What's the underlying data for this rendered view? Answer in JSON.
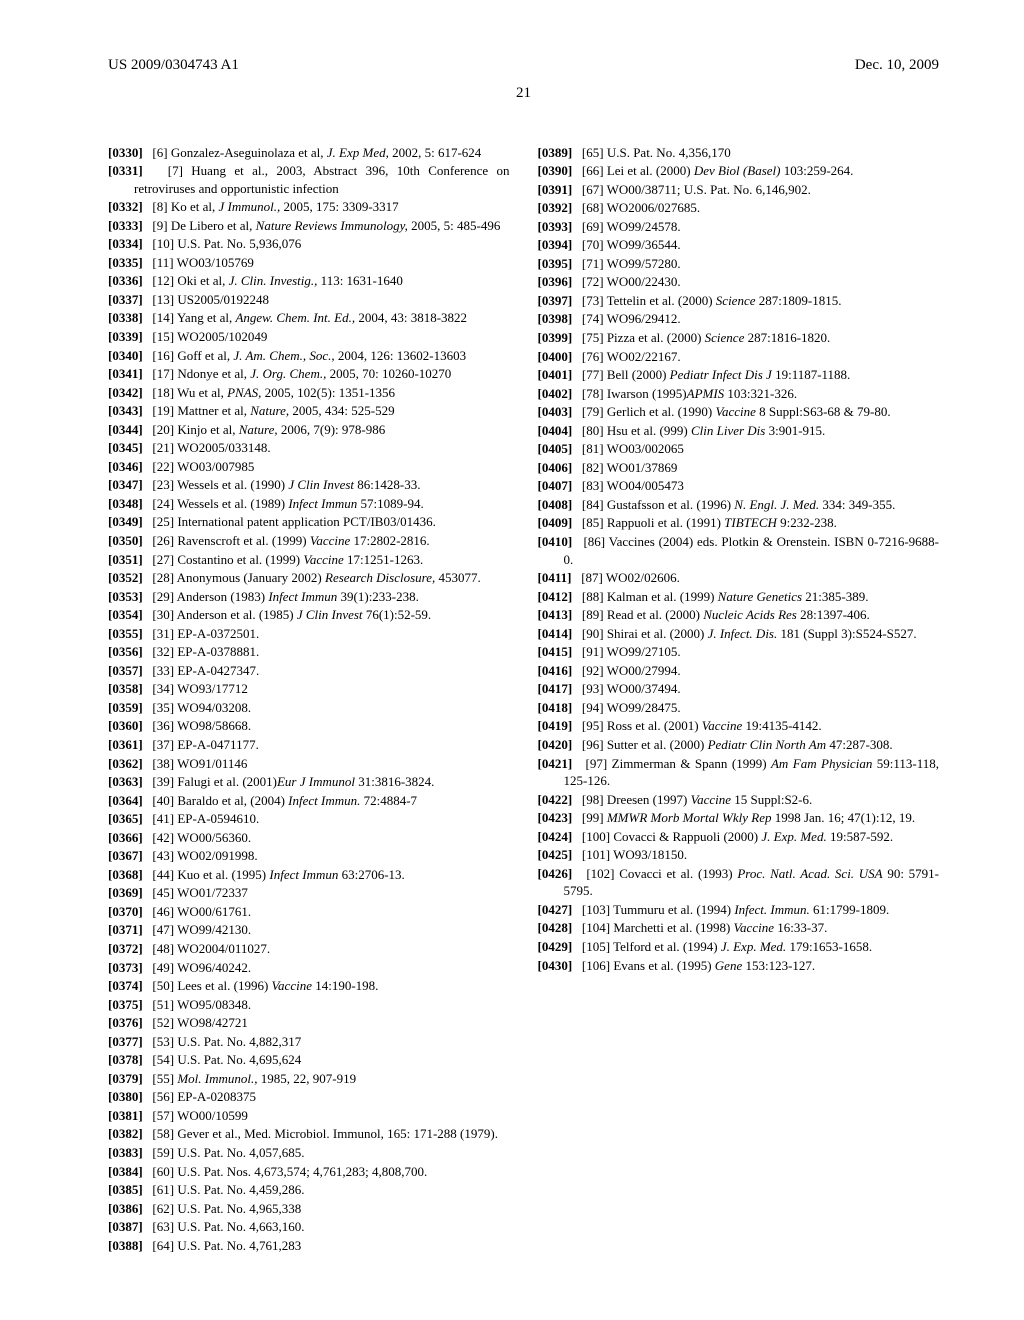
{
  "header": {
    "pub_number": "US 2009/0304743 A1",
    "date": "Dec. 10, 2009"
  },
  "page_number": "21",
  "references": [
    {
      "p": "[0330]",
      "n": "[6]",
      "html": "Gonzalez-Aseguinolaza et al, <span class='italic'>J. Exp Med,</span> 2002, 5: 617-624"
    },
    {
      "p": "[0331]",
      "n": "[7]",
      "html": "Huang et al., 2003, Abstract 396, 10th Conference on retroviruses and opportunistic infection"
    },
    {
      "p": "[0332]",
      "n": "[8]",
      "html": "Ko et al, <span class='italic'>J Immunol.,</span> 2005, 175: 3309-3317"
    },
    {
      "p": "[0333]",
      "n": "[9]",
      "html": "De Libero et al, <span class='italic'>Nature Reviews Immunology,</span> 2005, 5: 485-496"
    },
    {
      "p": "[0334]",
      "n": "[10]",
      "html": "U.S. Pat. No. 5,936,076"
    },
    {
      "p": "[0335]",
      "n": "[11]",
      "html": "WO03/105769"
    },
    {
      "p": "[0336]",
      "n": "[12]",
      "html": "Oki et al, <span class='italic'>J. Clin. Investig.,</span> 113: 1631-1640"
    },
    {
      "p": "[0337]",
      "n": "[13]",
      "html": "US2005/0192248"
    },
    {
      "p": "[0338]",
      "n": "[14]",
      "html": "Yang et al, <span class='italic'>Angew. Chem. Int. Ed.,</span> 2004, 43: 3818-3822"
    },
    {
      "p": "[0339]",
      "n": "[15]",
      "html": "WO2005/102049"
    },
    {
      "p": "[0340]",
      "n": "[16]",
      "html": "Goff et al, <span class='italic'>J. Am. Chem., Soc.,</span> 2004, 126: 13602-13603"
    },
    {
      "p": "[0341]",
      "n": "[17]",
      "html": "Ndonye et al, <span class='italic'>J. Org. Chem.,</span> 2005, 70: 10260-10270"
    },
    {
      "p": "[0342]",
      "n": "[18]",
      "html": "Wu et al, <span class='italic'>PNAS,</span> 2005, 102(5): 1351-1356"
    },
    {
      "p": "[0343]",
      "n": "[19]",
      "html": "Mattner et al, <span class='italic'>Nature,</span> 2005, 434: 525-529"
    },
    {
      "p": "[0344]",
      "n": "[20]",
      "html": "Kinjo et al, <span class='italic'>Nature,</span> 2006, 7(9): 978-986"
    },
    {
      "p": "[0345]",
      "n": "[21]",
      "html": "WO2005/033148."
    },
    {
      "p": "[0346]",
      "n": "[22]",
      "html": "WO03/007985"
    },
    {
      "p": "[0347]",
      "n": "[23]",
      "html": "Wessels et al. (1990) <span class='italic'>J Clin Invest</span> 86:1428-33."
    },
    {
      "p": "[0348]",
      "n": "[24]",
      "html": "Wessels et al. (1989) <span class='italic'>Infect Immun</span> 57:1089-94."
    },
    {
      "p": "[0349]",
      "n": "[25]",
      "html": "International patent application PCT/IB03/01436."
    },
    {
      "p": "[0350]",
      "n": "[26]",
      "html": "Ravenscroft et al. (1999) <span class='italic'>Vaccine</span> 17:2802-2816."
    },
    {
      "p": "[0351]",
      "n": "[27]",
      "html": "Costantino et al. (1999) <span class='italic'>Vaccine</span> 17:1251-1263."
    },
    {
      "p": "[0352]",
      "n": "[28]",
      "html": "Anonymous (January 2002) <span class='italic'>Research Disclosure,</span> 453077."
    },
    {
      "p": "[0353]",
      "n": "[29]",
      "html": "Anderson (1983) <span class='italic'>Infect Immun</span> 39(1):233-238."
    },
    {
      "p": "[0354]",
      "n": "[30]",
      "html": "Anderson et al. (1985) <span class='italic'>J Clin Invest</span> 76(1):52-59."
    },
    {
      "p": "[0355]",
      "n": "[31]",
      "html": "EP-A-0372501."
    },
    {
      "p": "[0356]",
      "n": "[32]",
      "html": "EP-A-0378881."
    },
    {
      "p": "[0357]",
      "n": "[33]",
      "html": "EP-A-0427347."
    },
    {
      "p": "[0358]",
      "n": "[34]",
      "html": "WO93/17712"
    },
    {
      "p": "[0359]",
      "n": "[35]",
      "html": "WO94/03208."
    },
    {
      "p": "[0360]",
      "n": "[36]",
      "html": "WO98/58668."
    },
    {
      "p": "[0361]",
      "n": "[37]",
      "html": "EP-A-0471177."
    },
    {
      "p": "[0362]",
      "n": "[38]",
      "html": "WO91/01146"
    },
    {
      "p": "[0363]",
      "n": "[39]",
      "html": "Falugi et al. (2001)<span class='italic'>Eur J Immunol</span> 31:3816-3824."
    },
    {
      "p": "[0364]",
      "n": "[40]",
      "html": "Baraldo et al, (2004) <span class='italic'>Infect Immun.</span> 72:4884-7"
    },
    {
      "p": "[0365]",
      "n": "[41]",
      "html": "EP-A-0594610."
    },
    {
      "p": "[0366]",
      "n": "[42]",
      "html": "WO00/56360."
    },
    {
      "p": "[0367]",
      "n": "[43]",
      "html": "WO02/091998."
    },
    {
      "p": "[0368]",
      "n": "[44]",
      "html": "Kuo et al. (1995) <span class='italic'>Infect Immun</span> 63:2706-13."
    },
    {
      "p": "[0369]",
      "n": "[45]",
      "html": "WO01/72337"
    },
    {
      "p": "[0370]",
      "n": "[46]",
      "html": "WO00/61761."
    },
    {
      "p": "[0371]",
      "n": "[47]",
      "html": "WO99/42130."
    },
    {
      "p": "[0372]",
      "n": "[48]",
      "html": "WO2004/011027."
    },
    {
      "p": "[0373]",
      "n": "[49]",
      "html": "WO96/40242."
    },
    {
      "p": "[0374]",
      "n": "[50]",
      "html": "Lees et al. (1996) <span class='italic'>Vaccine</span> 14:190-198."
    },
    {
      "p": "[0375]",
      "n": "[51]",
      "html": "WO95/08348."
    },
    {
      "p": "[0376]",
      "n": "[52]",
      "html": "WO98/42721"
    },
    {
      "p": "[0377]",
      "n": "[53]",
      "html": "U.S. Pat. No. 4,882,317"
    },
    {
      "p": "[0378]",
      "n": "[54]",
      "html": "U.S. Pat. No. 4,695,624"
    },
    {
      "p": "[0379]",
      "n": "[55]",
      "html": "<span class='italic'>Mol. Immunol.,</span> 1985, 22, 907-919"
    },
    {
      "p": "[0380]",
      "n": "[56]",
      "html": "EP-A-0208375"
    },
    {
      "p": "[0381]",
      "n": "[57]",
      "html": "WO00/10599"
    },
    {
      "p": "[0382]",
      "n": "[58]",
      "html": "Gever et al., Med. Microbiol. Immunol, 165: 171-288 (1979)."
    },
    {
      "p": "[0383]",
      "n": "[59]",
      "html": "U.S. Pat. No. 4,057,685."
    },
    {
      "p": "[0384]",
      "n": "[60]",
      "html": "U.S. Pat. Nos. 4,673,574; 4,761,283; 4,808,700."
    },
    {
      "p": "[0385]",
      "n": "[61]",
      "html": "U.S. Pat. No. 4,459,286."
    },
    {
      "p": "[0386]",
      "n": "[62]",
      "html": "U.S. Pat. No. 4,965,338"
    },
    {
      "p": "[0387]",
      "n": "[63]",
      "html": "U.S. Pat. No. 4,663,160."
    },
    {
      "p": "[0388]",
      "n": "[64]",
      "html": "U.S. Pat. No. 4,761,283"
    },
    {
      "p": "[0389]",
      "n": "[65]",
      "html": "U.S. Pat. No. 4,356,170"
    },
    {
      "p": "[0390]",
      "n": "[66]",
      "html": "Lei et al. (2000) <span class='italic'>Dev Biol (Basel)</span> 103:259-264."
    },
    {
      "p": "[0391]",
      "n": "[67]",
      "html": "WO00/38711; U.S. Pat. No. 6,146,902."
    },
    {
      "p": "[0392]",
      "n": "[68]",
      "html": "WO2006/027685."
    },
    {
      "p": "[0393]",
      "n": "[69]",
      "html": "WO99/24578."
    },
    {
      "p": "[0394]",
      "n": "[70]",
      "html": "WO99/36544."
    },
    {
      "p": "[0395]",
      "n": "[71]",
      "html": "WO99/57280."
    },
    {
      "p": "[0396]",
      "n": "[72]",
      "html": "WO00/22430."
    },
    {
      "p": "[0397]",
      "n": "[73]",
      "html": "Tettelin et al. (2000) <span class='italic'>Science</span> 287:1809-1815."
    },
    {
      "p": "[0398]",
      "n": "[74]",
      "html": "WO96/29412."
    },
    {
      "p": "[0399]",
      "n": "[75]",
      "html": "Pizza et al. (2000) <span class='italic'>Science</span> 287:1816-1820."
    },
    {
      "p": "[0400]",
      "n": "[76]",
      "html": "WO02/22167."
    },
    {
      "p": "[0401]",
      "n": "[77]",
      "html": "Bell (2000) <span class='italic'>Pediatr Infect Dis J</span> 19:1187-1188."
    },
    {
      "p": "[0402]",
      "n": "[78]",
      "html": "Iwarson (1995)<span class='italic'>APMIS</span> 103:321-326."
    },
    {
      "p": "[0403]",
      "n": "[79]",
      "html": "Gerlich et al. (1990) <span class='italic'>Vaccine</span> 8 Suppl:S63-68 &amp; 79-80."
    },
    {
      "p": "[0404]",
      "n": "[80]",
      "html": "Hsu et al. (999) <span class='italic'>Clin Liver Dis</span> 3:901-915."
    },
    {
      "p": "[0405]",
      "n": "[81]",
      "html": "WO03/002065"
    },
    {
      "p": "[0406]",
      "n": "[82]",
      "html": "WO01/37869"
    },
    {
      "p": "[0407]",
      "n": "[83]",
      "html": "WO04/005473"
    },
    {
      "p": "[0408]",
      "n": "[84]",
      "html": "Gustafsson et al. (1996) <span class='italic'>N. Engl. J. Med.</span> 334: 349-355."
    },
    {
      "p": "[0409]",
      "n": "[85]",
      "html": "Rappuoli et al. (1991) <span class='italic'>TIBTECH</span> 9:232-238."
    },
    {
      "p": "[0410]",
      "n": "[86]",
      "html": "Vaccines (2004) eds. Plotkin &amp; Orenstein. ISBN 0-7216-9688-0."
    },
    {
      "p": "[0411]",
      "n": "[87]",
      "html": "WO02/02606."
    },
    {
      "p": "[0412]",
      "n": "[88]",
      "html": "Kalman et al. (1999) <span class='italic'>Nature Genetics</span> 21:385-389."
    },
    {
      "p": "[0413]",
      "n": "[89]",
      "html": "Read et al. (2000) <span class='italic'>Nucleic Acids Res</span> 28:1397-406."
    },
    {
      "p": "[0414]",
      "n": "[90]",
      "html": "Shirai et al. (2000) <span class='italic'>J. Infect. Dis.</span> 181 (Suppl 3):S524-S527."
    },
    {
      "p": "[0415]",
      "n": "[91]",
      "html": "WO99/27105."
    },
    {
      "p": "[0416]",
      "n": "[92]",
      "html": "WO00/27994."
    },
    {
      "p": "[0417]",
      "n": "[93]",
      "html": "WO00/37494."
    },
    {
      "p": "[0418]",
      "n": "[94]",
      "html": "WO99/28475."
    },
    {
      "p": "[0419]",
      "n": "[95]",
      "html": "Ross et al. (2001) <span class='italic'>Vaccine</span> 19:4135-4142."
    },
    {
      "p": "[0420]",
      "n": "[96]",
      "html": "Sutter et al. (2000) <span class='italic'>Pediatr Clin North Am</span> 47:287-308."
    },
    {
      "p": "[0421]",
      "n": "[97]",
      "html": "Zimmerman &amp; Spann (1999) <span class='italic'>Am Fam Physician</span> 59:113-118, 125-126."
    },
    {
      "p": "[0422]",
      "n": "[98]",
      "html": "Dreesen (1997) <span class='italic'>Vaccine</span> 15 Suppl:S2-6."
    },
    {
      "p": "[0423]",
      "n": "[99]",
      "html": "<span class='italic'>MMWR Morb Mortal Wkly Rep</span> 1998 Jan. 16; 47(1):12, 19."
    },
    {
      "p": "[0424]",
      "n": "[100]",
      "html": "Covacci &amp; Rappuoli (2000) <span class='italic'>J. Exp. Med.</span> 19:587-592."
    },
    {
      "p": "[0425]",
      "n": "[101]",
      "html": "WO93/18150."
    },
    {
      "p": "[0426]",
      "n": "[102]",
      "html": "Covacci et al. (1993) <span class='italic'>Proc. Natl. Acad. Sci. USA</span> 90: 5791-5795."
    },
    {
      "p": "[0427]",
      "n": "[103]",
      "html": "Tummuru et al. (1994) <span class='italic'>Infect. Immun.</span> 61:1799-1809."
    },
    {
      "p": "[0428]",
      "n": "[104]",
      "html": "Marchetti et al. (1998) <span class='italic'>Vaccine</span> 16:33-37."
    },
    {
      "p": "[0429]",
      "n": "[105]",
      "html": "Telford et al. (1994) <span class='italic'>J. Exp. Med.</span> 179:1653-1658."
    },
    {
      "p": "[0430]",
      "n": "[106]",
      "html": "Evans et al. (1995) <span class='italic'>Gene</span> 153:123-127."
    }
  ]
}
